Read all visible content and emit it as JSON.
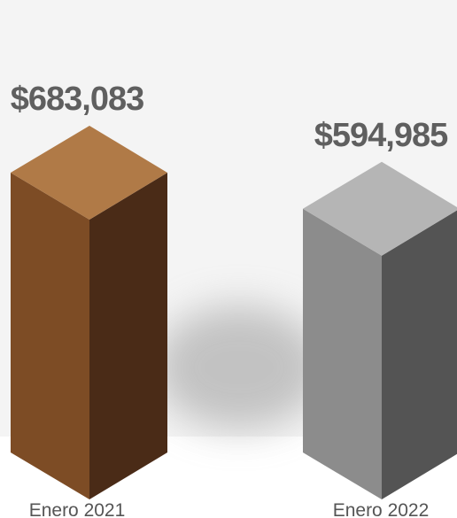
{
  "chart_data": {
    "type": "bar",
    "categories": [
      "Enero 2021",
      "Enero 2022"
    ],
    "values": [
      683083,
      594985
    ],
    "value_labels": [
      "$683,083",
      "$594,985"
    ],
    "title": "",
    "xlabel": "",
    "ylabel": "",
    "bar_style": "3d-isometric",
    "colors": {
      "bars": [
        {
          "front": "#7d4c25",
          "side": "#4a2b17",
          "top": "#b07a47"
        },
        {
          "front": "#8c8c8c",
          "side": "#545454",
          "top": "#b5b5b5"
        }
      ],
      "background": "#f4f4f4",
      "label": "#5f5f5f"
    }
  }
}
